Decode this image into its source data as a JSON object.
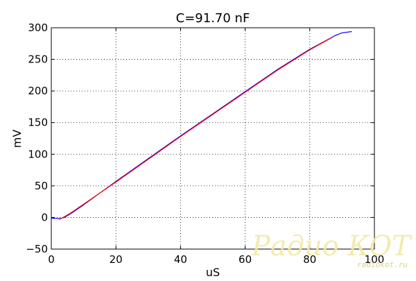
{
  "chart_data": {
    "type": "line",
    "title": "C=91.70 nF",
    "xlabel": "uS",
    "ylabel": "mV",
    "xlim": [
      0,
      100
    ],
    "ylim": [
      -50,
      300
    ],
    "xticks": [
      0,
      20,
      40,
      60,
      80,
      100
    ],
    "yticks": [
      -50,
      0,
      50,
      100,
      150,
      200,
      250,
      300
    ],
    "grid": true,
    "series": [
      {
        "color": "#0000ff",
        "x": [
          0,
          2,
          2.5,
          4,
          6,
          10,
          20,
          30,
          40,
          50,
          60,
          70,
          80,
          88,
          90,
          93
        ],
        "y": [
          -1,
          -1.5,
          -2,
          0,
          6,
          20,
          57,
          93,
          129,
          164,
          199,
          234,
          266,
          288,
          292,
          294
        ]
      },
      {
        "color": "#ff0000",
        "x": [
          2.5,
          4,
          6,
          10,
          20,
          30,
          40,
          50,
          60,
          70,
          80,
          87
        ],
        "y": [
          -3,
          1,
          7,
          21,
          56,
          92,
          128,
          163,
          198,
          233,
          265,
          285
        ]
      }
    ]
  },
  "watermark": {
    "main": "Радио КОТ",
    "sub": "radiokot.ru"
  }
}
